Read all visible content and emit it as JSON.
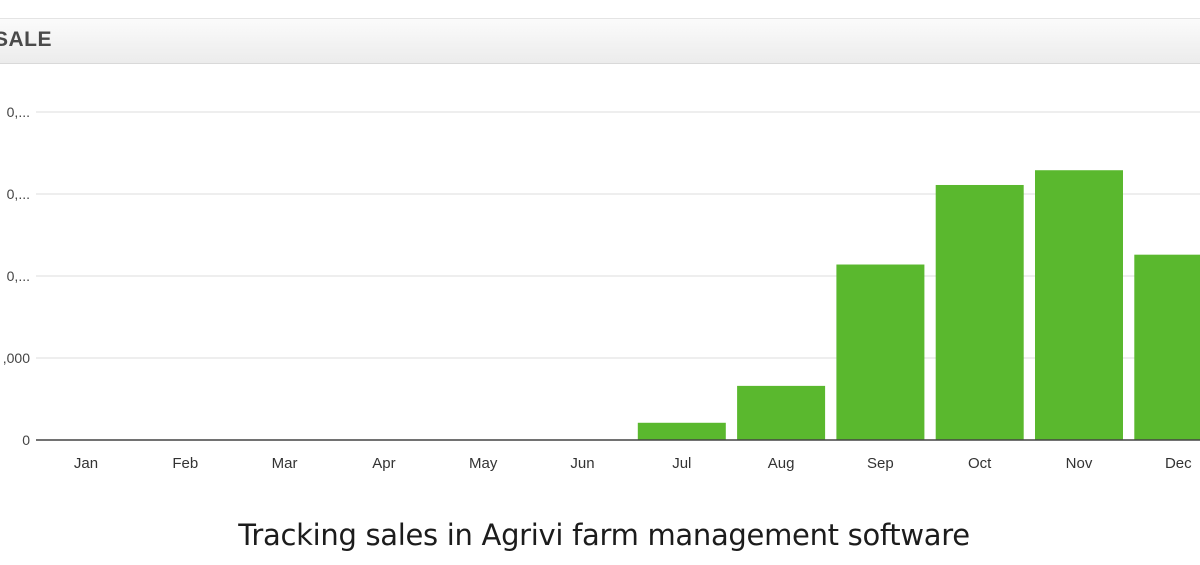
{
  "panel": {
    "title": "SALE"
  },
  "chart_data": {
    "type": "bar",
    "title": "",
    "xlabel": "",
    "ylabel": "",
    "categories": [
      "Jan",
      "Feb",
      "Mar",
      "Apr",
      "May",
      "Jun",
      "Jul",
      "Aug",
      "Sep",
      "Oct",
      "Nov",
      "Dec"
    ],
    "values": [
      0,
      0,
      0,
      0,
      0,
      0,
      210,
      660,
      2140,
      3110,
      3290,
      2260
    ],
    "y_tick_labels": [
      "0",
      ",000",
      "0,...",
      "0,...",
      "0,..."
    ],
    "y_tick_values": [
      0,
      1000,
      2000,
      3000,
      4000
    ],
    "ylim": [
      0,
      4000
    ],
    "bar_color": "#5ab82e",
    "grid": true,
    "legend": "none"
  },
  "caption": "Tracking sales in Agrivi farm management software"
}
